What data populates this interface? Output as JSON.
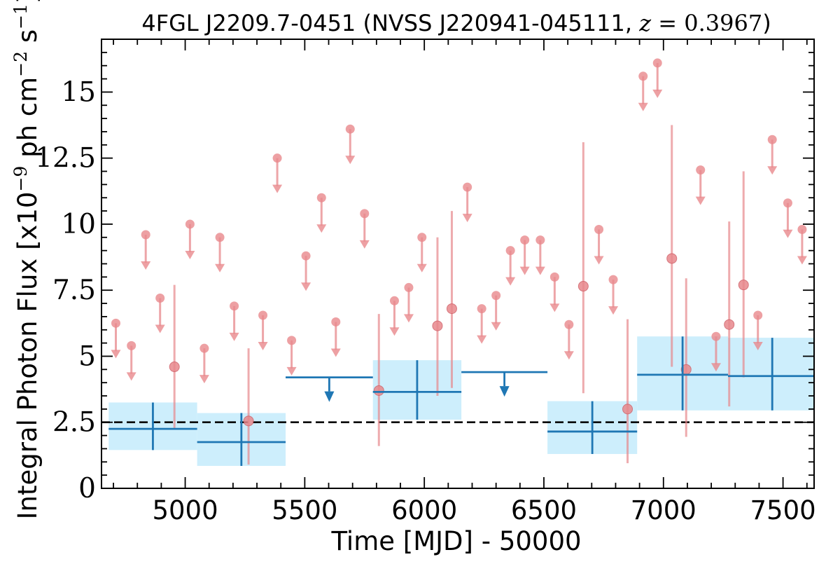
{
  "chart_data": {
    "type": "scatter",
    "title": "4FGL J2209.7-0451 (NVSS J220941-045111, z = 0.3967)",
    "xlabel": "Time [MJD] - 50000",
    "ylabel": "Integral Photon Flux [x10^-9 ph cm^-2 s^-1]",
    "xlim": [
      4650,
      7630
    ],
    "ylim": [
      0,
      17
    ],
    "x_ticks": [
      5000,
      5500,
      6000,
      6500,
      7000,
      7500
    ],
    "y_ticks": [
      0,
      2.5,
      5,
      7.5,
      10,
      12.5,
      15
    ],
    "y_tick_labels": [
      "0",
      "2.5",
      "5",
      "7.5",
      "10",
      "12.5",
      "15"
    ],
    "grid": false,
    "reference_line": {
      "y": 2.5,
      "style": "dashed",
      "color": "#000000"
    },
    "colors": {
      "short_bins": "#e8888c",
      "long_bins_line": "#1f77b4",
      "long_bins_band": "#cdeefc"
    },
    "series": [
      {
        "kind": "upper_limits",
        "color": "#e8888c",
        "points": [
          {
            "x": 4710,
            "y": 6.25
          },
          {
            "x": 4775,
            "y": 5.4
          },
          {
            "x": 4835,
            "y": 9.6
          },
          {
            "x": 4895,
            "y": 7.2
          },
          {
            "x": 5020,
            "y": 10.0
          },
          {
            "x": 5080,
            "y": 5.3
          },
          {
            "x": 5145,
            "y": 9.5
          },
          {
            "x": 5205,
            "y": 6.9
          },
          {
            "x": 5325,
            "y": 6.55
          },
          {
            "x": 5385,
            "y": 12.5
          },
          {
            "x": 5445,
            "y": 5.6
          },
          {
            "x": 5505,
            "y": 8.8
          },
          {
            "x": 5570,
            "y": 11.0
          },
          {
            "x": 5630,
            "y": 6.3
          },
          {
            "x": 5690,
            "y": 13.6
          },
          {
            "x": 5750,
            "y": 10.4
          },
          {
            "x": 5875,
            "y": 7.1
          },
          {
            "x": 5935,
            "y": 7.6
          },
          {
            "x": 5990,
            "y": 9.5
          },
          {
            "x": 6180,
            "y": 11.4
          },
          {
            "x": 6240,
            "y": 6.8
          },
          {
            "x": 6300,
            "y": 7.3
          },
          {
            "x": 6360,
            "y": 9.0
          },
          {
            "x": 6420,
            "y": 9.4
          },
          {
            "x": 6485,
            "y": 9.4
          },
          {
            "x": 6545,
            "y": 8.0
          },
          {
            "x": 6605,
            "y": 6.2
          },
          {
            "x": 6730,
            "y": 9.8
          },
          {
            "x": 6790,
            "y": 7.9
          },
          {
            "x": 6915,
            "y": 15.6
          },
          {
            "x": 6975,
            "y": 16.1
          },
          {
            "x": 7155,
            "y": 12.05
          },
          {
            "x": 7220,
            "y": 5.75
          },
          {
            "x": 7395,
            "y": 6.55
          },
          {
            "x": 7455,
            "y": 13.2
          },
          {
            "x": 7520,
            "y": 10.8
          },
          {
            "x": 7580,
            "y": 9.8
          }
        ]
      },
      {
        "kind": "detections",
        "color": "#e8888c",
        "points": [
          {
            "x": 4955,
            "y": 4.6,
            "ylow": 2.25,
            "yhigh": 7.7
          },
          {
            "x": 5265,
            "y": 2.55,
            "ylow": 0.9,
            "yhigh": 5.3
          },
          {
            "x": 5810,
            "y": 3.7,
            "ylow": 1.6,
            "yhigh": 6.6
          },
          {
            "x": 6055,
            "y": 6.15,
            "ylow": 3.5,
            "yhigh": 9.5
          },
          {
            "x": 6115,
            "y": 6.8,
            "ylow": 3.8,
            "yhigh": 10.5
          },
          {
            "x": 6665,
            "y": 7.65,
            "ylow": 3.6,
            "yhigh": 13.1
          },
          {
            "x": 6850,
            "y": 3.0,
            "ylow": 0.95,
            "yhigh": 6.4
          },
          {
            "x": 7035,
            "y": 8.7,
            "ylow": 4.6,
            "yhigh": 13.75
          },
          {
            "x": 7095,
            "y": 4.5,
            "ylow": 1.95,
            "yhigh": 7.95
          },
          {
            "x": 7275,
            "y": 6.2,
            "ylow": 3.1,
            "yhigh": 10.1
          },
          {
            "x": 7335,
            "y": 7.7,
            "ylow": 4.2,
            "yhigh": 12.0
          }
        ]
      },
      {
        "kind": "long_bins",
        "color": "#1f77b4",
        "bins": [
          {
            "x0": 4680,
            "x1": 5050,
            "y": 2.25,
            "ylow": 1.45,
            "yhigh": 3.25,
            "upper_limit": false
          },
          {
            "x0": 5050,
            "x1": 5420,
            "y": 1.75,
            "ylow": 0.85,
            "yhigh": 2.85,
            "upper_limit": false
          },
          {
            "x0": 5420,
            "x1": 5785,
            "y": 4.2,
            "upper_limit": true
          },
          {
            "x0": 5785,
            "x1": 6155,
            "y": 3.65,
            "ylow": 2.6,
            "yhigh": 4.85,
            "upper_limit": false
          },
          {
            "x0": 6155,
            "x1": 6515,
            "y": 4.4,
            "upper_limit": true
          },
          {
            "x0": 6515,
            "x1": 6890,
            "y": 2.15,
            "ylow": 1.3,
            "yhigh": 3.3,
            "upper_limit": false
          },
          {
            "x0": 6890,
            "x1": 7270,
            "y": 4.3,
            "ylow": 2.95,
            "yhigh": 5.75,
            "upper_limit": false
          },
          {
            "x0": 7270,
            "x1": 7640,
            "y": 4.25,
            "ylow": 2.95,
            "yhigh": 5.7,
            "upper_limit": false
          }
        ]
      }
    ]
  }
}
